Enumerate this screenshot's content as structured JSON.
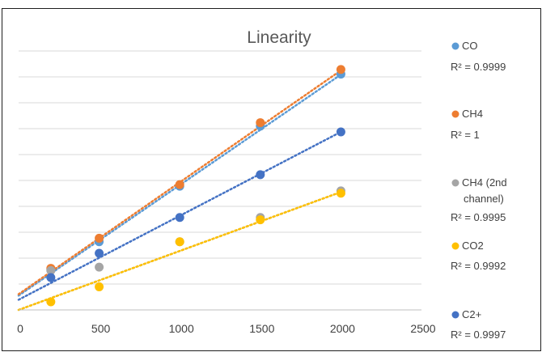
{
  "chart_data": {
    "type": "scatter",
    "title": "Linearity",
    "xlabel": "",
    "ylabel": "",
    "xlim": [
      0,
      2500
    ],
    "xticks": [
      0,
      500,
      1000,
      1500,
      2000,
      2500
    ],
    "grid": true,
    "legend_position": "right",
    "trendline_style": "dotted linear",
    "series": [
      {
        "name": "CO",
        "r2_label": "R² = 0.9999",
        "color": "#5b9bd5",
        "x": [
          200,
          500,
          1000,
          1500,
          2000
        ],
        "y": [
          1.75,
          2.95,
          5.35,
          7.95,
          10.2
        ],
        "trend_intercept": 0.62,
        "trend_slope": 0.00478
      },
      {
        "name": "CH4",
        "r2_label": "R² = 1",
        "color": "#ed7d31",
        "x": [
          200,
          500,
          1000,
          1500,
          2000
        ],
        "y": [
          1.8,
          3.1,
          5.42,
          8.1,
          10.4
        ],
        "trend_intercept": 0.68,
        "trend_slope": 0.00484
      },
      {
        "name": "CH4 (2nd channel)",
        "r2_label": "R² = 0.9995",
        "color": "#a5a5a5",
        "x": [
          200,
          500,
          1000,
          1500,
          2000
        ],
        "y": [
          1.7,
          1.85,
          2.95,
          4.0,
          5.15
        ],
        "trend_intercept": 0.0,
        "trend_slope": 0.00255
      },
      {
        "name": "CO2",
        "r2_label": "R² = 0.9992",
        "color": "#ffc000",
        "x": [
          200,
          500,
          1000,
          1500,
          2000
        ],
        "y": [
          0.35,
          1.0,
          2.95,
          3.9,
          5.05
        ],
        "trend_intercept": 0.0,
        "trend_slope": 0.00255
      },
      {
        "name": "C2+",
        "r2_label": "R² = 0.9997",
        "color": "#4472c4",
        "x": [
          200,
          500,
          1000,
          1500,
          2000
        ],
        "y": [
          1.4,
          2.45,
          4.0,
          5.85,
          7.7
        ],
        "trend_intercept": 0.44,
        "trend_slope": 0.00363
      }
    ]
  }
}
